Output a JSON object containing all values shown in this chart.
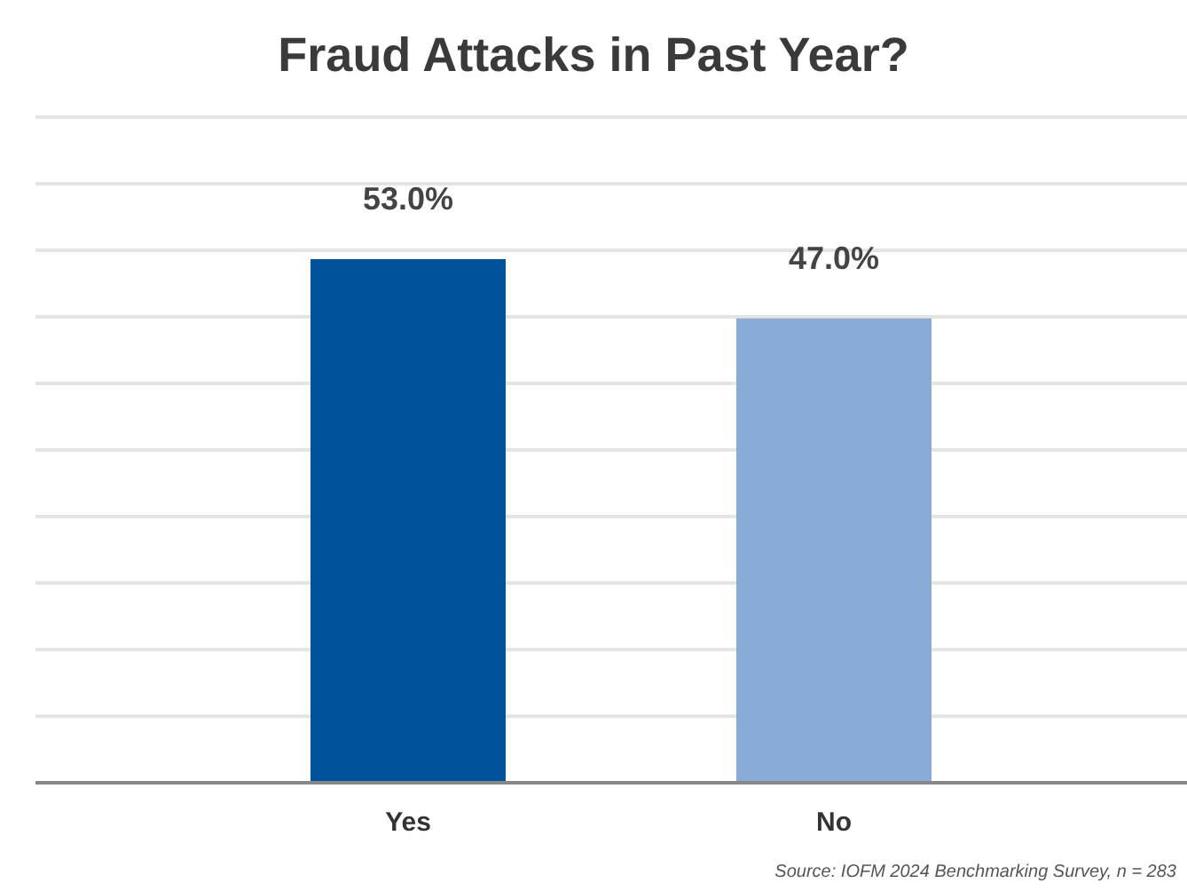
{
  "chart_data": {
    "type": "bar",
    "title": "Fraud Attacks in Past Year?",
    "categories": [
      "Yes",
      "No"
    ],
    "values": [
      53.0,
      47.0
    ],
    "value_labels": [
      "53.0%",
      "47.0%"
    ],
    "colors": [
      "#00539b",
      "#88aad6"
    ],
    "grid": "y",
    "annotations": [
      "Source: IOFM 2024 Benchmarking Survey, n = 283"
    ]
  }
}
